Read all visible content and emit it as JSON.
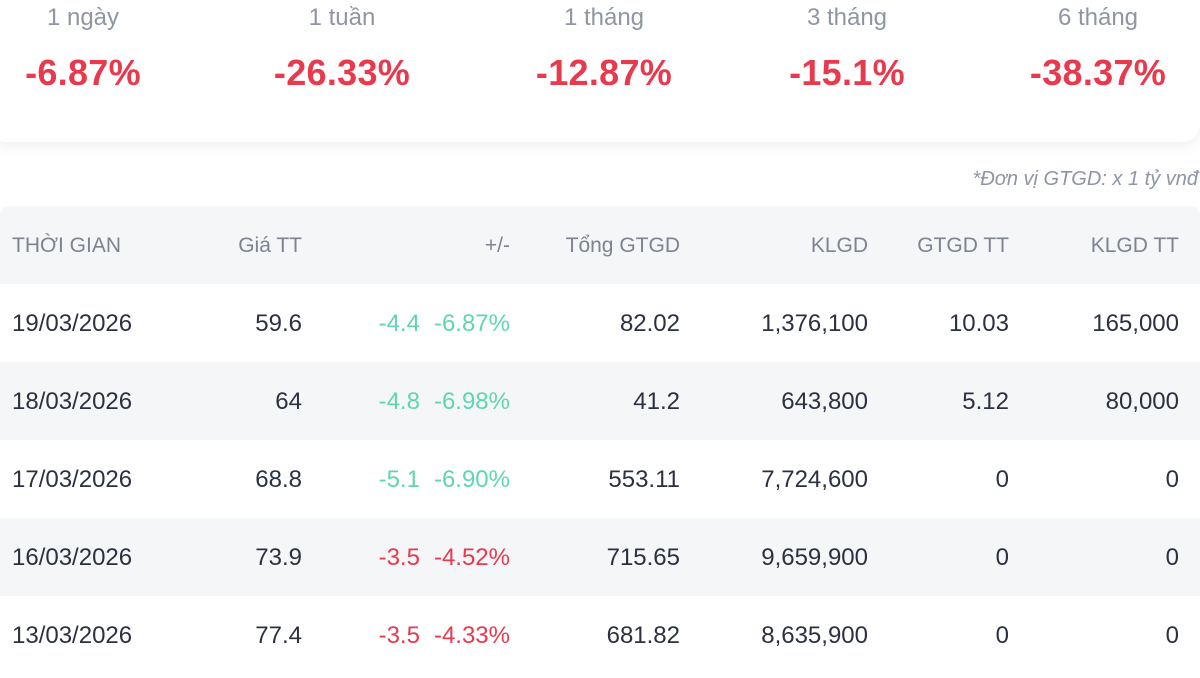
{
  "performance": [
    {
      "label": "1 ngày",
      "value": "-6.87%"
    },
    {
      "label": "1 tuần",
      "value": "-26.33%"
    },
    {
      "label": "1 tháng",
      "value": "-12.87%"
    },
    {
      "label": "3 tháng",
      "value": "-15.1%"
    },
    {
      "label": "6 tháng",
      "value": "-38.37%"
    }
  ],
  "unit_note": "*Đơn vị GTGD: x 1 tỷ vnđ",
  "table": {
    "headers": {
      "date": "THỜI GIAN",
      "price": "Giá TT",
      "change": "+/-",
      "total_value": "Tổng GTGD",
      "volume": "KLGD",
      "deal_value": "GTGD TT",
      "deal_volume": "KLGD TT"
    },
    "rows": [
      {
        "date": "19/03/2026",
        "price": "59.6",
        "change_abs": "-4.4",
        "change_pct": "-6.87%",
        "total_value": "82.02",
        "volume": "1,376,100",
        "deal_value": "10.03",
        "deal_volume": "165,000",
        "change_color": "#5fd6b3"
      },
      {
        "date": "18/03/2026",
        "price": "64",
        "change_abs": "-4.8",
        "change_pct": "-6.98%",
        "total_value": "41.2",
        "volume": "643,800",
        "deal_value": "5.12",
        "deal_volume": "80,000",
        "change_color": "#5fd6b3"
      },
      {
        "date": "17/03/2026",
        "price": "68.8",
        "change_abs": "-5.1",
        "change_pct": "-6.90%",
        "total_value": "553.11",
        "volume": "7,724,600",
        "deal_value": "0",
        "deal_volume": "0",
        "change_color": "#5fd6b3"
      },
      {
        "date": "16/03/2026",
        "price": "73.9",
        "change_abs": "-3.5",
        "change_pct": "-4.52%",
        "total_value": "715.65",
        "volume": "9,659,900",
        "deal_value": "0",
        "deal_volume": "0",
        "change_color": "#e8394d"
      },
      {
        "date": "13/03/2026",
        "price": "77.4",
        "change_abs": "-3.5",
        "change_pct": "-4.33%",
        "total_value": "681.82",
        "volume": "8,635,900",
        "deal_value": "0",
        "deal_volume": "0",
        "change_color": "#e8394d"
      }
    ]
  },
  "colors": {
    "negative_value": "#e8394d",
    "floor_change": "#5fd6b3",
    "row_alt_bg": "#f4f6f8",
    "muted_text": "#8f95a3"
  }
}
